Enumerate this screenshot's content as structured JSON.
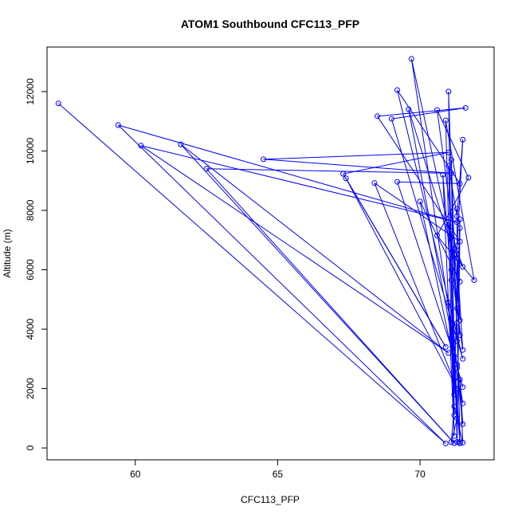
{
  "chart_data": {
    "type": "scatter",
    "title": "ATOM1 Southbound CFC113_PFP",
    "xlabel": "CFC113_PFP",
    "ylabel": "Altitude (m)",
    "xlim": [
      56.9,
      72.6
    ],
    "ylim": [
      -400,
      13500
    ],
    "x_ticks": [
      60,
      65,
      70
    ],
    "y_ticks": [
      0,
      2000,
      4000,
      6000,
      8000,
      10000,
      12000
    ],
    "grid": false,
    "legend": "none",
    "connected": true,
    "colors": {
      "series": "#0000ff",
      "axis": "#000000"
    },
    "points": [
      {
        "x": 57.3,
        "y": 11600
      },
      {
        "x": 70.9,
        "y": 150
      },
      {
        "x": 59.4,
        "y": 10870
      },
      {
        "x": 71.3,
        "y": 7600
      },
      {
        "x": 60.2,
        "y": 10180
      },
      {
        "x": 71.0,
        "y": 3200
      },
      {
        "x": 61.6,
        "y": 10220
      },
      {
        "x": 71.2,
        "y": 160
      },
      {
        "x": 62.5,
        "y": 9400
      },
      {
        "x": 71.1,
        "y": 9250
      },
      {
        "x": 64.5,
        "y": 9720
      },
      {
        "x": 71.0,
        "y": 9950
      },
      {
        "x": 67.3,
        "y": 9230
      },
      {
        "x": 70.9,
        "y": 3400
      },
      {
        "x": 67.4,
        "y": 9080
      },
      {
        "x": 71.3,
        "y": 2000
      },
      {
        "x": 68.4,
        "y": 8920
      },
      {
        "x": 71.4,
        "y": 6950
      },
      {
        "x": 68.5,
        "y": 11170
      },
      {
        "x": 71.6,
        "y": 11450
      },
      {
        "x": 69.0,
        "y": 11080
      },
      {
        "x": 71.5,
        "y": 3000
      },
      {
        "x": 69.2,
        "y": 12050
      },
      {
        "x": 71.4,
        "y": 8900
      },
      {
        "x": 69.2,
        "y": 8960
      },
      {
        "x": 71.3,
        "y": 2800
      },
      {
        "x": 69.6,
        "y": 11400
      },
      {
        "x": 71.2,
        "y": 6500
      },
      {
        "x": 69.7,
        "y": 13100
      },
      {
        "x": 71.5,
        "y": 1500
      },
      {
        "x": 70.0,
        "y": 8300
      },
      {
        "x": 71.4,
        "y": 5600
      },
      {
        "x": 70.6,
        "y": 11380
      },
      {
        "x": 71.7,
        "y": 9100
      },
      {
        "x": 70.6,
        "y": 7150
      },
      {
        "x": 71.9,
        "y": 5650
      },
      {
        "x": 70.9,
        "y": 11030
      },
      {
        "x": 71.2,
        "y": 400
      },
      {
        "x": 70.8,
        "y": 9200
      },
      {
        "x": 71.1,
        "y": 5650
      },
      {
        "x": 71.0,
        "y": 12000
      },
      {
        "x": 71.3,
        "y": 3600
      },
      {
        "x": 71.1,
        "y": 9700
      },
      {
        "x": 71.2,
        "y": 1100
      },
      {
        "x": 71.0,
        "y": 9500
      },
      {
        "x": 71.3,
        "y": 7800
      },
      {
        "x": 71.5,
        "y": 10380
      },
      {
        "x": 71.3,
        "y": 6800
      },
      {
        "x": 71.3,
        "y": 8050
      },
      {
        "x": 71.3,
        "y": 4700
      },
      {
        "x": 71.4,
        "y": 7700
      },
      {
        "x": 71.2,
        "y": 2300
      },
      {
        "x": 71.4,
        "y": 7400
      },
      {
        "x": 71.3,
        "y": 200
      },
      {
        "x": 71.1,
        "y": 7200
      },
      {
        "x": 71.4,
        "y": 3800
      },
      {
        "x": 71.0,
        "y": 7500
      },
      {
        "x": 71.5,
        "y": 6100
      },
      {
        "x": 71.2,
        "y": 6700
      },
      {
        "x": 71.4,
        "y": 4300
      },
      {
        "x": 71.3,
        "y": 6400
      },
      {
        "x": 71.5,
        "y": 3300
      },
      {
        "x": 71.1,
        "y": 6000
      },
      {
        "x": 71.2,
        "y": 1800
      },
      {
        "x": 71.0,
        "y": 4900
      },
      {
        "x": 71.4,
        "y": 200
      },
      {
        "x": 71.3,
        "y": 4200
      },
      {
        "x": 71.4,
        "y": 150
      },
      {
        "x": 71.2,
        "y": 3100
      },
      {
        "x": 71.5,
        "y": 2050
      },
      {
        "x": 71.3,
        "y": 2700
      },
      {
        "x": 71.5,
        "y": 800
      },
      {
        "x": 71.4,
        "y": 2300
      },
      {
        "x": 71.5,
        "y": 180
      },
      {
        "x": 71.2,
        "y": 1400
      },
      {
        "x": 71.1,
        "y": 200
      },
      {
        "x": 71.3,
        "y": 1000
      },
      {
        "x": 71.1,
        "y": 3700
      }
    ]
  }
}
